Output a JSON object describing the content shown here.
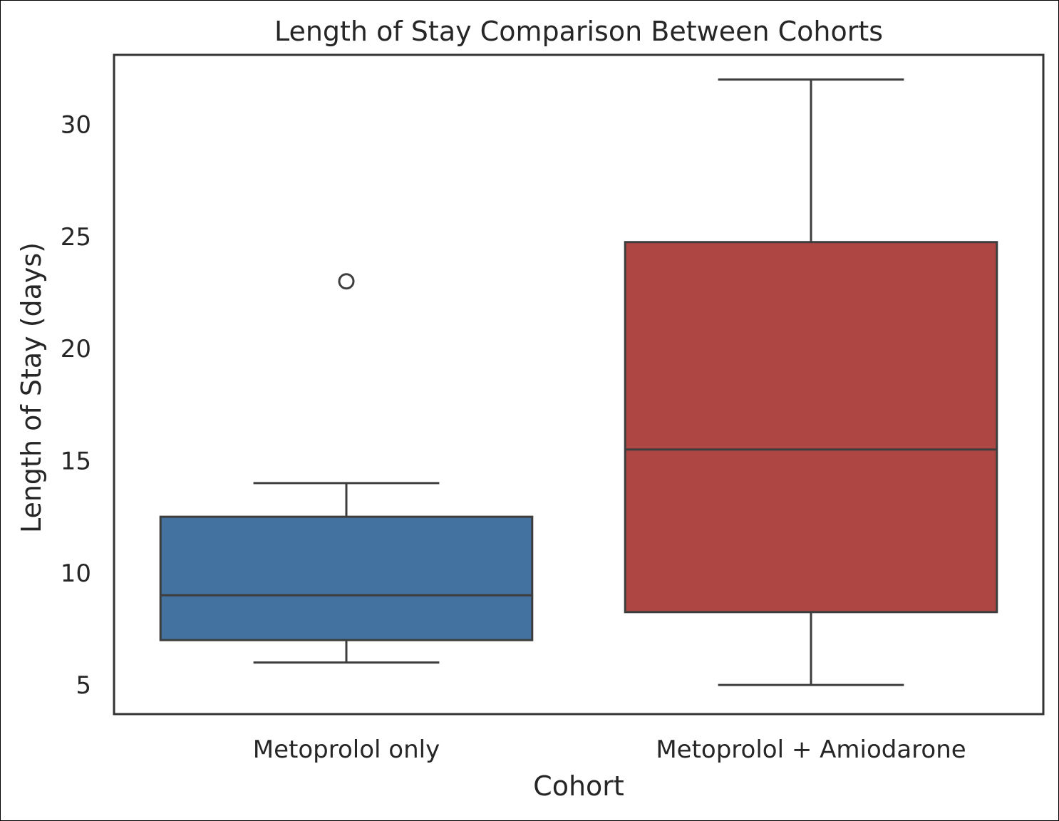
{
  "chart_data": {
    "type": "box",
    "title": "Length of Stay Comparison Between Cohorts",
    "xlabel": "Cohort",
    "ylabel": "Length of Stay (days)",
    "ylim": [
      3.7,
      33.1
    ],
    "yticks": [
      "5",
      "10",
      "15",
      "20",
      "25",
      "30"
    ],
    "grid": false,
    "categories": [
      "Metoprolol only",
      "Metoprolol + Amiodarone"
    ],
    "boxes": [
      {
        "category": "Metoprolol only",
        "whisker_low": 6,
        "q1": 7,
        "median": 9,
        "q3": 12.5,
        "whisker_high": 14,
        "outliers": [
          23
        ],
        "color": "#4472a0"
      },
      {
        "category": "Metoprolol + Amiodarone",
        "whisker_low": 5,
        "q1": 8.25,
        "median": 15.5,
        "q3": 24.75,
        "whisker_high": 32,
        "outliers": [],
        "color": "#ae4644"
      }
    ],
    "line_color": "#3d3d3d",
    "axis_color": "#333333"
  }
}
